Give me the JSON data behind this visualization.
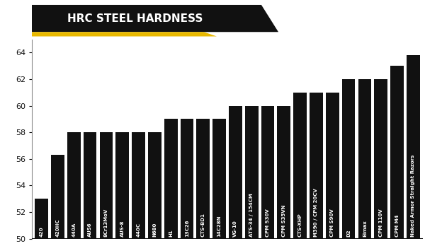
{
  "title": "HRC STEEL HARDNESS",
  "background_color": "#ffffff",
  "bar_color": "#111111",
  "title_bg_color": "#111111",
  "title_text_color": "#ffffff",
  "accent_color": "#e8b800",
  "categories": [
    "420",
    "420HC",
    "440A",
    "AUS6",
    "8Cr13MoV",
    "AUS-8",
    "440C",
    "N680",
    "H1",
    "13C26",
    "CTS-BD1",
    "14C28N",
    "VG-10",
    "ATS-34 / 154CM",
    "CPM S30V",
    "CPM S35VN",
    "CTS-XHP",
    "M390 / CPM 20CV",
    "CPM S90V",
    "D2",
    "Elmax",
    "CPM 110V",
    "CPM M4",
    "Naked Armor Straight Razors"
  ],
  "values": [
    53,
    56.3,
    58,
    58,
    58,
    58,
    58,
    58,
    59,
    59,
    59,
    59,
    60,
    60,
    60,
    60,
    61,
    61,
    61,
    62,
    62,
    62,
    63,
    63.8
  ],
  "ylim": [
    50,
    65
  ],
  "yticks": [
    50,
    52,
    54,
    56,
    58,
    60,
    62,
    64
  ],
  "label_fontsize": 5.0,
  "ytick_fontsize": 8.0
}
